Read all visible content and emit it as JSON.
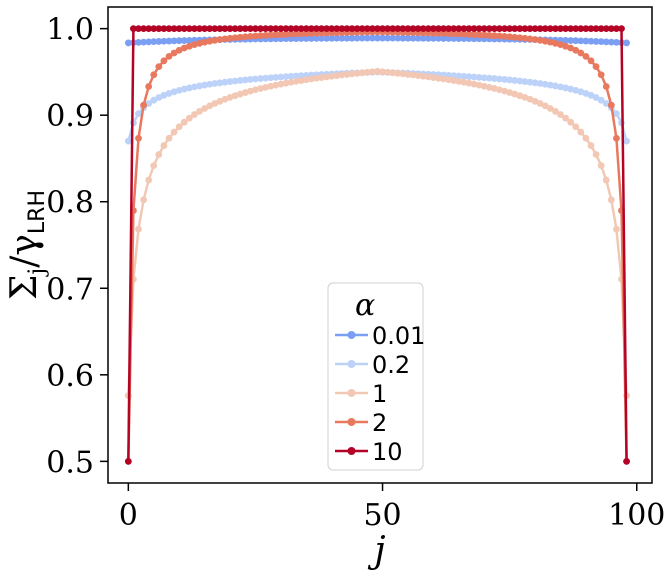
{
  "chart_data": {
    "type": "line",
    "xlabel": "j",
    "ylabel_main": "Σ",
    "ylabel_sub": "j",
    "ylabel_rest": "/γ",
    "ylabel_rest_sub": "LRH",
    "xlim": [
      -4,
      103
    ],
    "ylim": [
      0.475,
      1.025
    ],
    "xticks": [
      0,
      50,
      100
    ],
    "xtick_labels": [
      "0",
      "50",
      "100"
    ],
    "yticks": [
      0.5,
      0.6,
      0.7,
      0.8,
      0.9,
      1.0
    ],
    "ytick_labels": [
      "0.5",
      "0.6",
      "0.7",
      "0.8",
      "0.9",
      "1.0"
    ],
    "legend_title": "α",
    "legend_position": "lower-center",
    "n": 99,
    "series": [
      {
        "name": "0.01",
        "alpha": 0.01,
        "color": "#7b9ff2"
      },
      {
        "name": "0.2",
        "alpha": 0.2,
        "color": "#bcd2f8"
      },
      {
        "name": "1",
        "alpha": 1,
        "color": "#f2c8b5"
      },
      {
        "name": "2",
        "alpha": 2,
        "color": "#e8795f"
      },
      {
        "name": "10",
        "alpha": 10,
        "color": "#b40426"
      }
    ]
  }
}
